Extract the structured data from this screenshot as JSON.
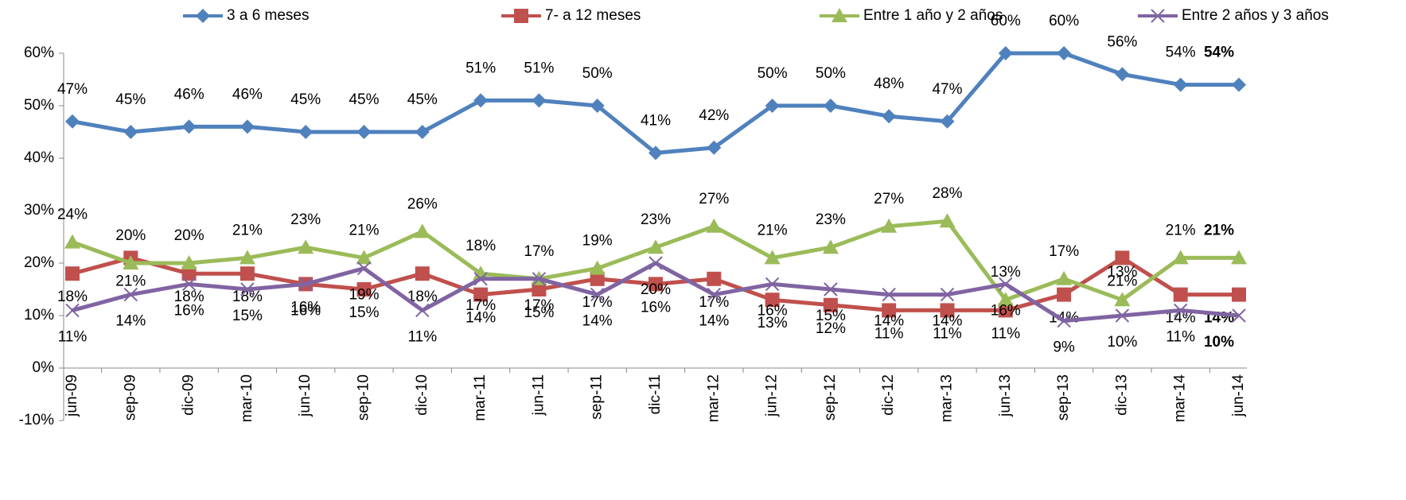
{
  "chart_data": {
    "type": "line",
    "categories": [
      "jun-09",
      "sep-09",
      "dic-09",
      "mar-10",
      "jun-10",
      "sep-10",
      "dic-10",
      "mar-11",
      "jun-11",
      "sep-11",
      "dic-11",
      "mar-12",
      "jun-12",
      "sep-12",
      "dic-12",
      "mar-13",
      "jun-13",
      "sep-13",
      "dic-13",
      "mar-14",
      "jun-14"
    ],
    "series": [
      {
        "name": "3 a 6 meses",
        "color": "#4f81bd",
        "marker": "diamond",
        "values": [
          47,
          45,
          46,
          46,
          45,
          45,
          45,
          51,
          51,
          50,
          41,
          42,
          50,
          50,
          48,
          47,
          60,
          60,
          56,
          54,
          54
        ],
        "value_labels": [
          "47%",
          "45%",
          "46%",
          "46%",
          "45%",
          "45%",
          "45%",
          "51%",
          "51%",
          "50%",
          "41%",
          "42%",
          "50%",
          "50%",
          "48%",
          "47%",
          "60%",
          "60%",
          "56%",
          "54%",
          "54%"
        ]
      },
      {
        "name": "7- a 12 meses",
        "color": "#c0504d",
        "marker": "square",
        "values": [
          18,
          21,
          18,
          18,
          16,
          15,
          18,
          14,
          15,
          17,
          16,
          17,
          13,
          12,
          11,
          11,
          11,
          14,
          21,
          14,
          14
        ],
        "value_labels": [
          "18%",
          "21%",
          "18%",
          "18%",
          "16%",
          "15%",
          "18%",
          "14%",
          "15%",
          "17%",
          "16%",
          "17%",
          "13%",
          "12%",
          "11%",
          "11%",
          "11%",
          "14%",
          "21%",
          "14%",
          "14%"
        ]
      },
      {
        "name": "Entre 1 año y 2 años",
        "color": "#9bbb59",
        "marker": "triangle",
        "values": [
          24,
          20,
          20,
          21,
          23,
          21,
          26,
          18,
          17,
          19,
          23,
          27,
          21,
          23,
          27,
          28,
          13,
          17,
          13,
          21,
          21
        ],
        "value_labels": [
          "24%",
          "20%",
          "20%",
          "21%",
          "23%",
          "21%",
          "26%",
          "18%",
          "17%",
          "19%",
          "23%",
          "27%",
          "21%",
          "23%",
          "27%",
          "28%",
          "13%",
          "17%",
          "13%",
          "21%",
          "21%"
        ]
      },
      {
        "name": "Entre 2 años y 3 años",
        "color": "#8064a2",
        "marker": "x",
        "values": [
          11,
          14,
          16,
          15,
          16,
          19,
          11,
          17,
          17,
          14,
          20,
          14,
          16,
          15,
          14,
          14,
          16,
          9,
          10,
          11,
          10
        ],
        "value_labels": [
          "11%",
          "14%",
          "16%",
          "15%",
          "16%",
          "19%",
          "11%",
          "17%",
          "17%",
          "14%",
          "20%",
          "14%",
          "16%",
          "15%",
          "14%",
          "14%",
          "16%",
          "9%",
          "10%",
          "11%",
          "10%"
        ]
      }
    ],
    "ylim": [
      -10,
      60
    ],
    "yticks": [
      {
        "value": -10,
        "label": "-10%"
      },
      {
        "value": 0,
        "label": "0%"
      },
      {
        "value": 10,
        "label": "10%"
      },
      {
        "value": 20,
        "label": "20%"
      },
      {
        "value": 30,
        "label": "30%"
      },
      {
        "value": 40,
        "label": "40%"
      },
      {
        "value": 50,
        "label": "50%"
      },
      {
        "value": 60,
        "label": "60%"
      }
    ],
    "legend": "top"
  }
}
